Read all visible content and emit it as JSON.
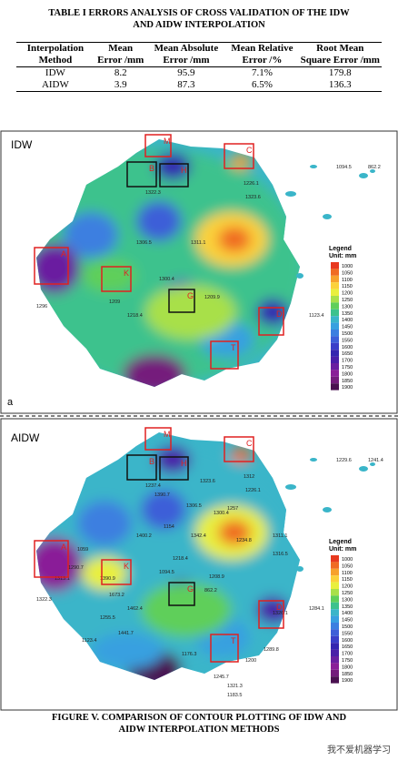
{
  "caption": {
    "line1": "TABLE I  ERRORS ANALYSIS OF CROSS VALIDATION OF THE IDW",
    "line2": "AND AIDW INTERPOLATION"
  },
  "table": {
    "header": [
      "Interpolation Method",
      "Mean Error /mm",
      "Mean Absolute Error /mm",
      "Mean Relative Error /%",
      "Root Mean Square Error /mm"
    ],
    "rows": [
      [
        "IDW",
        "8.2",
        "95.9",
        "7.1%",
        "179.8"
      ],
      [
        "AIDW",
        "3.9",
        "87.3",
        "6.5%",
        "136.3"
      ]
    ]
  },
  "figures": [
    {
      "title": "IDW",
      "panel": "a",
      "boxes": [
        "A",
        "B",
        "C",
        "D",
        "H",
        "M",
        "K",
        "G",
        "T"
      ],
      "stations": [
        "1322.3",
        "1306.5",
        "1209",
        "1323.6",
        "1218.4",
        "1300.4",
        "1209.9",
        "1311.1",
        "1296",
        "1123.4",
        "1226.1",
        "1094.5",
        "862.2"
      ]
    },
    {
      "title": "AIDW",
      "boxes": [
        "A",
        "B",
        "C",
        "D",
        "H",
        "M",
        "K",
        "G",
        "T"
      ],
      "stations": [
        "1237.4",
        "1400.2",
        "1673.2",
        "1226.1",
        "1462.4",
        "1094.5",
        "862.2",
        "1342.4",
        "1322.3",
        "1284.1",
        "1312",
        "1229.6",
        "1241.4",
        "1323.6",
        "1257",
        "1311.1",
        "1059",
        "1390.7",
        "1306.5",
        "1300.4",
        "1154",
        "1234.8",
        "1316.5",
        "1290.7",
        "1313.1",
        "1390.9",
        "1218.4",
        "1208.9",
        "1255.5",
        "1321.3",
        "1123.4",
        "1441.7",
        "1326.1",
        "1289.8",
        "1200",
        "1245.7",
        "1176.3",
        "1183.5"
      ]
    }
  ],
  "legend": {
    "title": "Legend",
    "unit": "Unit: mm",
    "values": [
      1000,
      1050,
      1100,
      1150,
      1200,
      1250,
      1300,
      1350,
      1400,
      1450,
      1500,
      1550,
      1600,
      1650,
      1700,
      1750,
      1800,
      1850,
      1900
    ],
    "colors": [
      "#e8391f",
      "#f06b23",
      "#f7a12c",
      "#fbd13a",
      "#e9ef3d",
      "#a8e04a",
      "#5fcf5a",
      "#3cc28d",
      "#3ab5c9",
      "#38a0e0",
      "#3c7fe0",
      "#3d5fd8",
      "#3a3fc8",
      "#3526b0",
      "#4a1fa8",
      "#6a1fa0",
      "#8a1f98",
      "#741c7c",
      "#4a1050"
    ]
  },
  "figure_caption": {
    "line1": "FIGURE V.  COMPARISON OF CONTOUR PLOTTING OF IDW AND",
    "line2": "AIDW INTERPOLATION METHODS"
  },
  "watermark": "我不爱机器学习"
}
